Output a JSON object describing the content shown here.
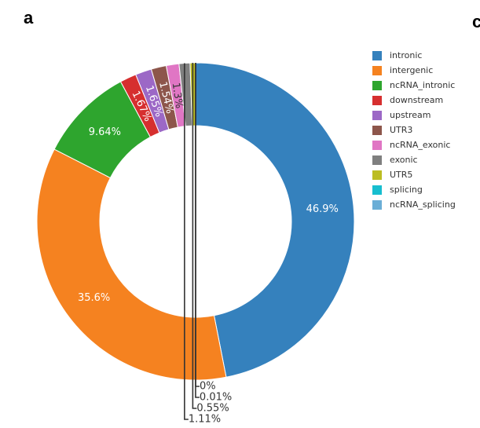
{
  "panel_letter": "a",
  "cut_letter": "c",
  "chart_data": {
    "type": "pie",
    "hole": true,
    "legend_position": "top-right",
    "categories": [
      "intronic",
      "intergenic",
      "ncRNA_intronic",
      "downstream",
      "upstream",
      "UTR3",
      "ncRNA_exonic",
      "exonic",
      "UTR5",
      "splicing",
      "ncRNA_splicing"
    ],
    "values": [
      46.9,
      35.6,
      9.64,
      1.67,
      1.65,
      1.54,
      1.3,
      1.11,
      0.55,
      0.01,
      0
    ],
    "labels": [
      "46.9%",
      "35.6%",
      "9.64%",
      "1.67%",
      "1.65%",
      "1.54%",
      "1.3%",
      "1.11%",
      "0.55%",
      "0.01%",
      "0%"
    ],
    "colors": [
      "#3581bd",
      "#f58220",
      "#2ea52e",
      "#d62f2f",
      "#9c68c6",
      "#8d564b",
      "#e076c4",
      "#7f7f7f",
      "#bcbd22",
      "#17becf",
      "#6baed6"
    ]
  }
}
